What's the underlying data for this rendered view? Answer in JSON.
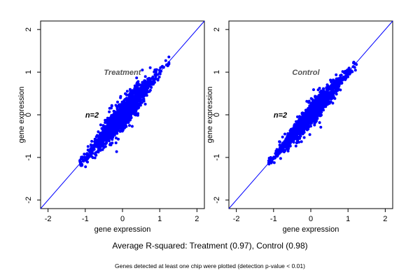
{
  "captions": {
    "main": "Average R-squared: Treatment (0.97), Control (0.98)",
    "sub": "Genes detected at least one chip were plotted (detection p-value < 0.01)"
  },
  "colors": {
    "points": "#0000ff",
    "line": "#0000ff",
    "axis": "#000000",
    "annotation": "#555555",
    "n_label": "#000000"
  },
  "chart_data": [
    {
      "type": "scatter",
      "panel": "treatment",
      "title": "",
      "xlabel": "gene expression",
      "ylabel": "gene expression",
      "xlim": [
        -2.2,
        2.2
      ],
      "ylim": [
        -2.2,
        2.2
      ],
      "xticks": [
        -2,
        -1,
        0,
        1,
        2
      ],
      "yticks": [
        -2,
        -1,
        0,
        1,
        2
      ],
      "reference_line": "y = x",
      "annotations": [
        {
          "text": "Treatment",
          "x": -0.5,
          "y": 1.0
        },
        {
          "text": "n=2",
          "x": -1.0,
          "y": 0.0
        }
      ],
      "r_squared": 0.97,
      "point_cloud": {
        "x_range": [
          -1.15,
          1.25
        ],
        "mean": 0.0,
        "std": 0.45,
        "correlation": 0.985,
        "approx_points": 1400
      }
    },
    {
      "type": "scatter",
      "panel": "control",
      "title": "",
      "xlabel": "gene expression",
      "ylabel": "gene expression",
      "xlim": [
        -2.2,
        2.2
      ],
      "ylim": [
        -2.2,
        2.2
      ],
      "xticks": [
        -2,
        -1,
        0,
        1,
        2
      ],
      "yticks": [
        -2,
        -1,
        0,
        1,
        2
      ],
      "reference_line": "y = x",
      "annotations": [
        {
          "text": "Control",
          "x": -0.5,
          "y": 1.0
        },
        {
          "text": "n=2",
          "x": -1.0,
          "y": 0.0
        }
      ],
      "r_squared": 0.98,
      "point_cloud": {
        "x_range": [
          -1.15,
          1.25
        ],
        "mean": 0.0,
        "std": 0.45,
        "correlation": 0.99,
        "approx_points": 1400
      }
    }
  ]
}
